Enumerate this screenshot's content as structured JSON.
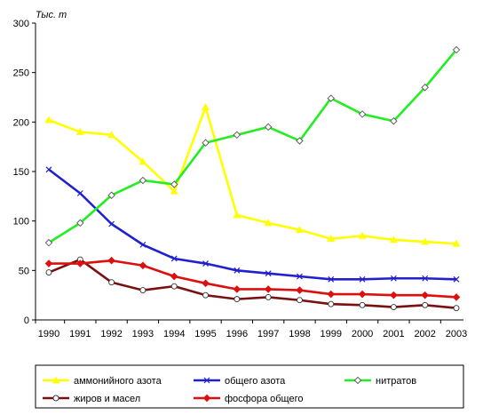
{
  "chart_data": {
    "type": "line",
    "title": "",
    "unit_label": "Тыс. т",
    "xlabel": "",
    "ylabel": "",
    "x": [
      "1990",
      "1991",
      "1992",
      "1993",
      "1994",
      "1995",
      "1996",
      "1997",
      "1998",
      "1999",
      "2000",
      "2001",
      "2002",
      "2003"
    ],
    "ylim": [
      0,
      300
    ],
    "yticks": [
      "0",
      "50",
      "100",
      "150",
      "200",
      "250",
      "300"
    ],
    "grid": false,
    "legend_position": "bottom",
    "series": [
      {
        "name": "аммонийного азота",
        "color": "#ffff00",
        "marker": "triangle",
        "values": [
          202,
          190,
          187,
          160,
          130,
          215,
          106,
          98,
          91,
          82,
          85,
          81,
          79,
          77
        ]
      },
      {
        "name": "общего азота",
        "color": "#2020d0",
        "marker": "x",
        "values": [
          152,
          128,
          97,
          76,
          62,
          57,
          50,
          47,
          44,
          41,
          41,
          42,
          42,
          41
        ]
      },
      {
        "name": "нитратов",
        "color": "#22ee22",
        "marker": "diamond-open",
        "values": [
          78,
          98,
          126,
          141,
          137,
          179,
          187,
          195,
          181,
          224,
          208,
          201,
          235,
          273
        ]
      },
      {
        "name": "жиров и масел",
        "color": "#7b1010",
        "marker": "circle-open",
        "values": [
          48,
          61,
          38,
          30,
          34,
          25,
          21,
          23,
          20,
          16,
          15,
          13,
          15,
          12
        ]
      },
      {
        "name": "фосфора общего",
        "color": "#dd1010",
        "marker": "diamond",
        "values": [
          57,
          57,
          60,
          55,
          44,
          37,
          31,
          31,
          30,
          26,
          26,
          25,
          25,
          23
        ]
      }
    ]
  }
}
